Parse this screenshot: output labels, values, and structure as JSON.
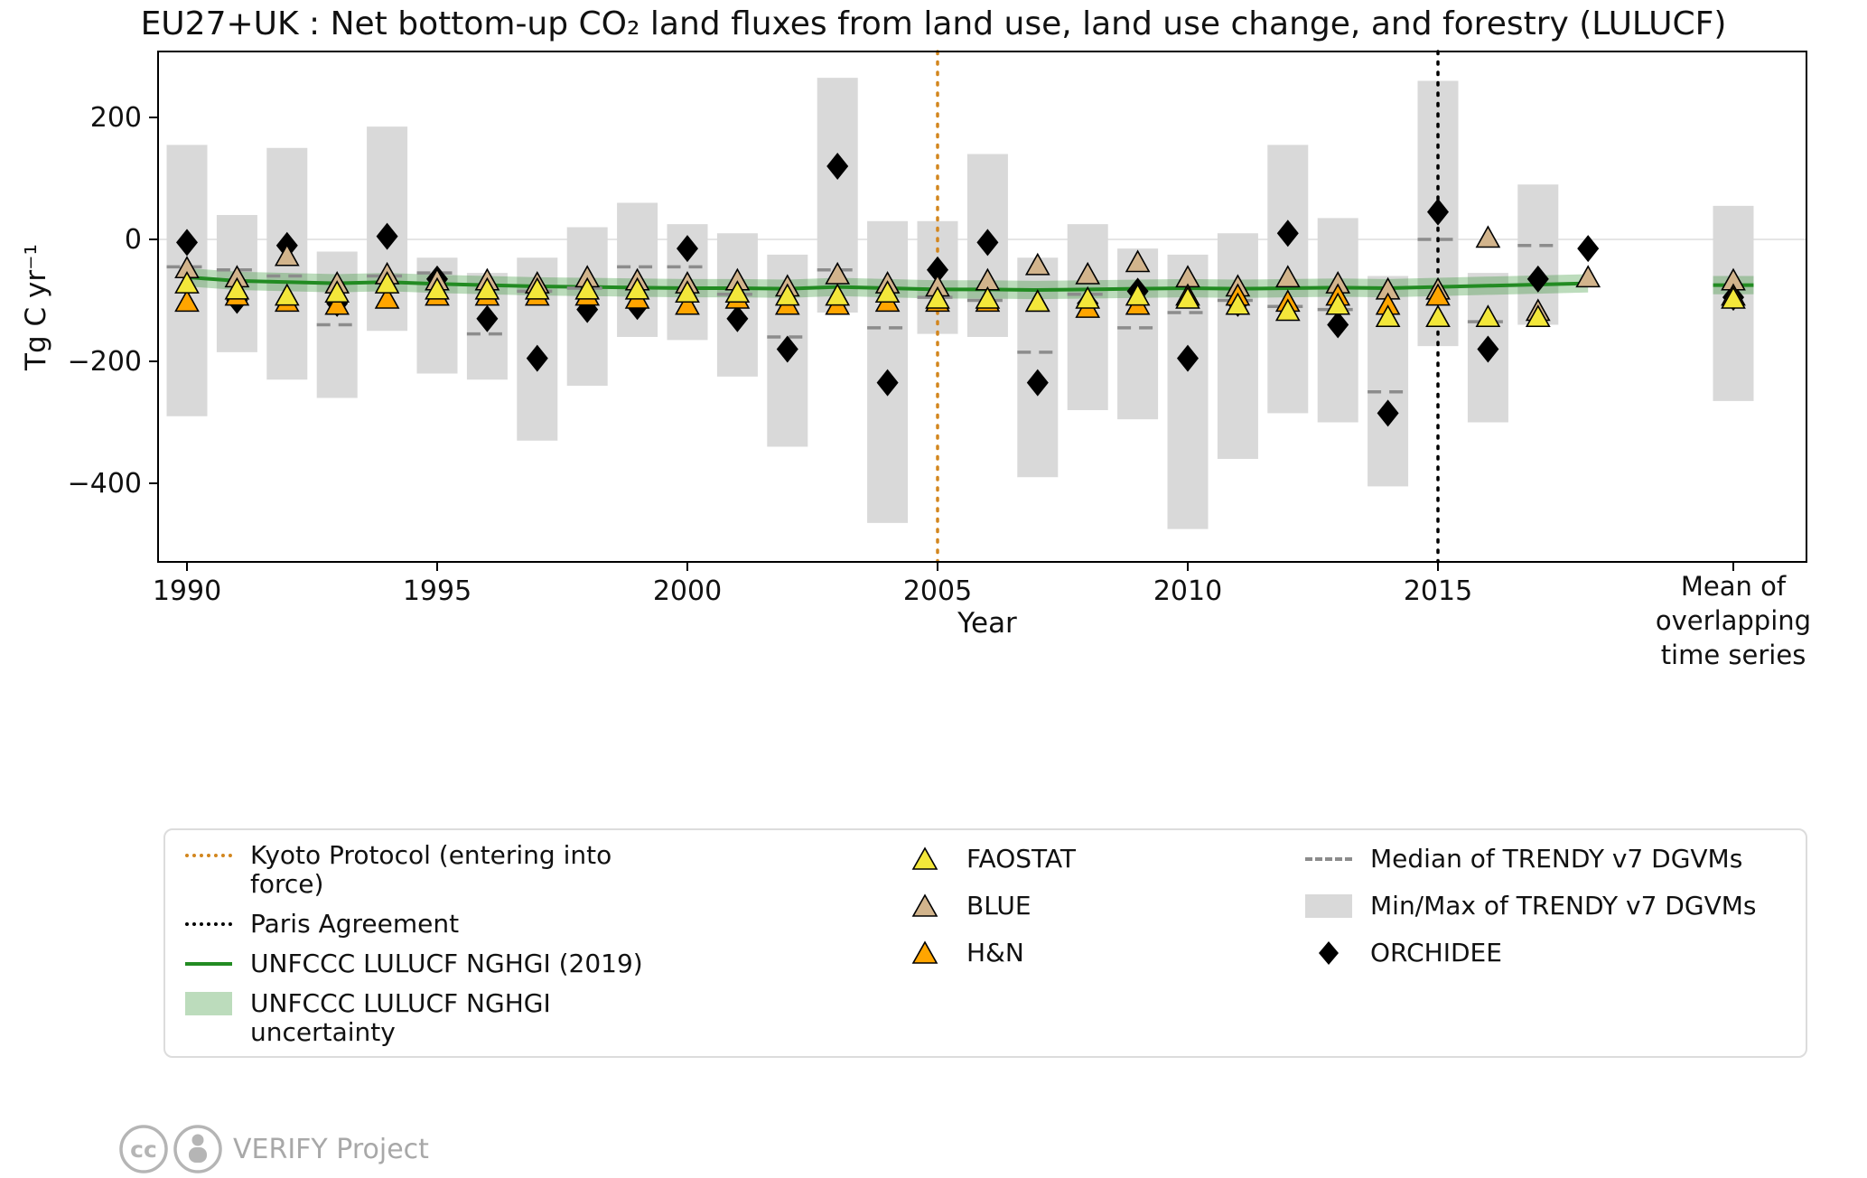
{
  "title": "EU27+UK : Net bottom-up CO₂ land fluxes from land use, land use change, and forestry (LULUCF)",
  "axes": {
    "ylabel": "Tg C yr⁻¹",
    "xlabel": "Year",
    "yticks": [
      200,
      0,
      -200,
      -400
    ],
    "ytick_labels": [
      "200",
      "0",
      "−200",
      "−400"
    ],
    "xticks": [
      1990,
      1995,
      2000,
      2005,
      2010,
      2015
    ],
    "xtick_labels": [
      "1990",
      "1995",
      "2000",
      "2005",
      "2010",
      "2015"
    ],
    "mean_label_lines": [
      "Mean of",
      "overlapping",
      "time series"
    ]
  },
  "colors": {
    "faostat": "#f3e73a",
    "blue": "#d2b48c",
    "hn": "#ffa500",
    "orchidee": "#000000",
    "trendy_fill": "#d9d9d9",
    "trendy_median": "#8c8c8c",
    "nghgi_line": "#228b22",
    "nghgi_band_opacity": "0.3",
    "kyoto": "#d2861e",
    "paris": "#000000",
    "zero_line": "#e5e5e5",
    "marker_edge": "#000000",
    "footer_gray": "#b5b5b5"
  },
  "chart_data": {
    "type": "scatter",
    "ylim": [
      -530,
      310
    ],
    "years": [
      1990,
      1991,
      1992,
      1993,
      1994,
      1995,
      1996,
      1997,
      1998,
      1999,
      2000,
      2001,
      2002,
      2003,
      2004,
      2005,
      2006,
      2007,
      2008,
      2009,
      2010,
      2011,
      2012,
      2013,
      2014,
      2015,
      2016,
      2017,
      2018
    ],
    "series": {
      "trendy_max": [
        155,
        40,
        150,
        -20,
        185,
        -30,
        -55,
        -30,
        20,
        60,
        25,
        10,
        -25,
        265,
        30,
        30,
        140,
        -30,
        25,
        -15,
        -25,
        10,
        155,
        35,
        -60,
        260,
        -55,
        90,
        null
      ],
      "trendy_min": [
        -290,
        -185,
        -230,
        -260,
        -150,
        -220,
        -230,
        -330,
        -240,
        -160,
        -165,
        -225,
        -340,
        -120,
        -465,
        -155,
        -160,
        -390,
        -280,
        -295,
        -475,
        -360,
        -285,
        -300,
        -405,
        -175,
        -300,
        -140,
        null
      ],
      "trendy_median": [
        -45,
        -50,
        -60,
        -140,
        -60,
        -55,
        -155,
        -85,
        -80,
        -45,
        -45,
        -90,
        -160,
        -50,
        -145,
        -95,
        -100,
        -185,
        -90,
        -145,
        -120,
        -100,
        -110,
        -115,
        -250,
        0,
        -135,
        -10,
        null
      ],
      "faostat": [
        -75,
        -85,
        -95,
        -90,
        -75,
        -85,
        -85,
        -85,
        -85,
        -85,
        -90,
        -90,
        -95,
        -95,
        -90,
        -100,
        -100,
        -105,
        -100,
        -95,
        -100,
        -110,
        -120,
        -110,
        -130,
        -130,
        -130,
        -130,
        null
      ],
      "blue": [
        -50,
        -65,
        -30,
        -75,
        -60,
        -70,
        -70,
        -75,
        -65,
        -70,
        -75,
        -70,
        -80,
        -60,
        -75,
        -80,
        -70,
        -45,
        -60,
        -40,
        -65,
        -80,
        -65,
        -75,
        -85,
        -85,
        0,
        -120,
        -65
      ],
      "hn": [
        -105,
        -95,
        -105,
        -110,
        -100,
        -95,
        -95,
        -95,
        -95,
        -100,
        -110,
        -100,
        -110,
        -110,
        -105,
        -105,
        -105,
        -105,
        -115,
        -110,
        -95,
        -95,
        -105,
        -95,
        -110,
        -95,
        null,
        null,
        null
      ],
      "orchidee": [
        -5,
        -100,
        -10,
        -105,
        5,
        -65,
        -130,
        -195,
        -115,
        -110,
        -15,
        -130,
        -180,
        120,
        -235,
        -50,
        -5,
        -235,
        -105,
        -85,
        -195,
        -105,
        10,
        -140,
        -285,
        45,
        -180,
        -65,
        -15
      ],
      "nghgi": [
        -62,
        -68,
        -70,
        -72,
        -70,
        -73,
        -75,
        -77,
        -78,
        -79,
        -80,
        -80,
        -81,
        -78,
        -80,
        -82,
        -82,
        -83,
        -82,
        -81,
        -80,
        -81,
        -80,
        -79,
        -80,
        -78,
        -76,
        -74,
        -72
      ],
      "nghgi_uncertainty": 15
    },
    "events": {
      "kyoto_year": 2005,
      "paris_year": 2015
    },
    "mean_overlapping": {
      "trendy_max": 55,
      "trendy_min": -265,
      "faostat": -100,
      "blue": -70,
      "hn": -95,
      "orchidee": -95,
      "nghgi": -75
    }
  },
  "legend": {
    "kyoto": "Kyoto Protocol (entering into force)",
    "paris": "Paris Agreement",
    "nghgi_line": "UNFCCC LULUCF NGHGI (2019)",
    "nghgi_unc": "UNFCCC LULUCF NGHGI uncertainty",
    "faostat": "FAOSTAT",
    "blue": "BLUE",
    "hn": "H&N",
    "median": "Median of TRENDY v7 DGVMs",
    "minmax": "Min/Max of TRENDY v7 DGVMs",
    "orchidee": "ORCHIDEE"
  },
  "footer": {
    "credit": "VERIFY Project"
  }
}
